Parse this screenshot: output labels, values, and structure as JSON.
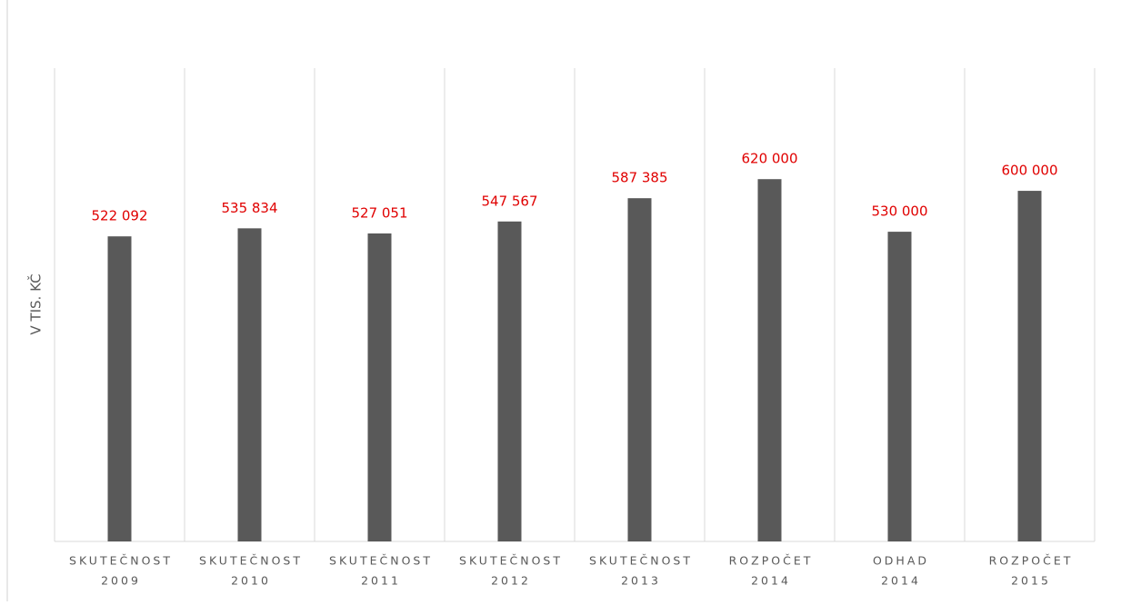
{
  "chart_data": {
    "type": "bar",
    "y_label": "V TIS. KČ",
    "categories": [
      [
        "SKUTEČNOST",
        "2009"
      ],
      [
        "SKUTEČNOST",
        "2010"
      ],
      [
        "SKUTEČNOST",
        "2011"
      ],
      [
        "SKUTEČNOST",
        "2012"
      ],
      [
        "SKUTEČNOST",
        "2013"
      ],
      [
        "ROZPOČET",
        "2014"
      ],
      [
        "ODHAD",
        "2014"
      ],
      [
        "ROZPOČET",
        "2015"
      ]
    ],
    "values": [
      522092,
      535834,
      527051,
      547567,
      587385,
      620000,
      530000,
      600000
    ],
    "value_labels": [
      "522 092",
      "535 834",
      "527 051",
      "547 567",
      "587 385",
      "620 000",
      "530 000",
      "600 000"
    ],
    "color": "#595959",
    "label_color": "#e00000",
    "ylim": [
      0,
      810000
    ]
  }
}
